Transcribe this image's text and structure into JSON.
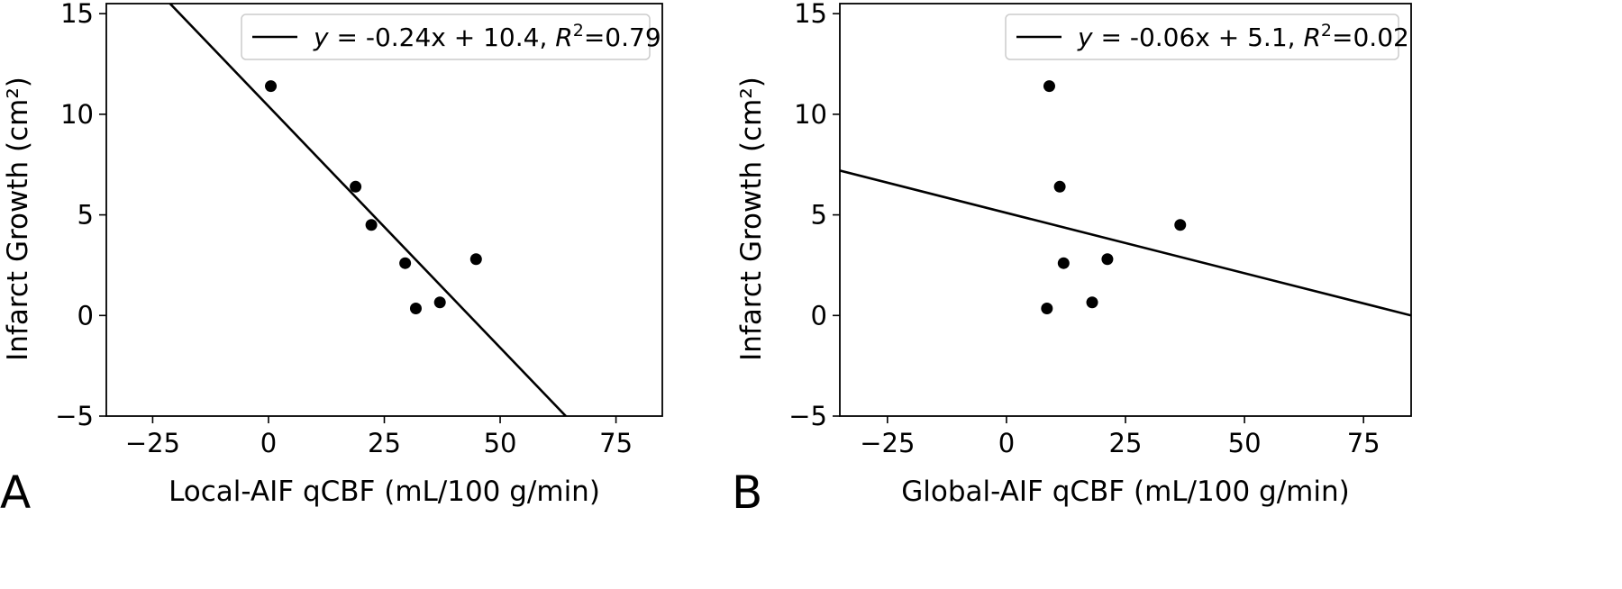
{
  "chart_data": [
    {
      "type": "scatter",
      "panel_label": "A",
      "xlabel": "Local-AIF qCBF (mL/100 g/min)",
      "ylabel": "Infarct Growth (cm²)",
      "xlim": [
        -35,
        85
      ],
      "ylim": [
        -5,
        15.5
      ],
      "xticks": [
        -25,
        0,
        25,
        50,
        75
      ],
      "xtick_labels": [
        "−25",
        "0",
        "25",
        "50",
        "75"
      ],
      "yticks": [
        -5,
        0,
        5,
        10,
        15
      ],
      "ytick_labels": [
        "−5",
        "0",
        "5",
        "10",
        "15"
      ],
      "grid": false,
      "legend_position": "top-right",
      "points": [
        {
          "x": 0.5,
          "y": 11.4
        },
        {
          "x": 18.8,
          "y": 6.4
        },
        {
          "x": 22.2,
          "y": 4.5
        },
        {
          "x": 29.5,
          "y": 2.6
        },
        {
          "x": 44.8,
          "y": 2.8
        },
        {
          "x": 37.0,
          "y": 0.65
        },
        {
          "x": 31.8,
          "y": 0.35
        }
      ],
      "fit_line": {
        "slope": -0.24,
        "intercept": 10.4,
        "legend": {
          "y_label": "y",
          "equation": " =  -0.24x + 10.4, ",
          "r2_label": "R",
          "r2_sup": "2",
          "r2_value": "=0.79"
        }
      }
    },
    {
      "type": "scatter",
      "panel_label": "B",
      "xlabel": "Global-AIF qCBF (mL/100 g/min)",
      "ylabel": "Infarct Growth (cm²)",
      "xlim": [
        -35,
        85
      ],
      "ylim": [
        -5,
        15.5
      ],
      "xticks": [
        -25,
        0,
        25,
        50,
        75
      ],
      "xtick_labels": [
        "−25",
        "0",
        "25",
        "50",
        "75"
      ],
      "yticks": [
        -5,
        0,
        5,
        10,
        15
      ],
      "ytick_labels": [
        "−5",
        "0",
        "5",
        "10",
        "15"
      ],
      "grid": false,
      "legend_position": "top-right",
      "points": [
        {
          "x": 9.0,
          "y": 11.4
        },
        {
          "x": 11.2,
          "y": 6.4
        },
        {
          "x": 36.5,
          "y": 4.5
        },
        {
          "x": 12.0,
          "y": 2.6
        },
        {
          "x": 21.2,
          "y": 2.8
        },
        {
          "x": 18.0,
          "y": 0.65
        },
        {
          "x": 8.5,
          "y": 0.35
        }
      ],
      "fit_line": {
        "slope": -0.06,
        "intercept": 5.1,
        "legend": {
          "y_label": "y",
          "equation": " =  -0.06x + 5.1, ",
          "r2_label": "R",
          "r2_sup": "2",
          "r2_value": "=0.02"
        }
      }
    }
  ]
}
